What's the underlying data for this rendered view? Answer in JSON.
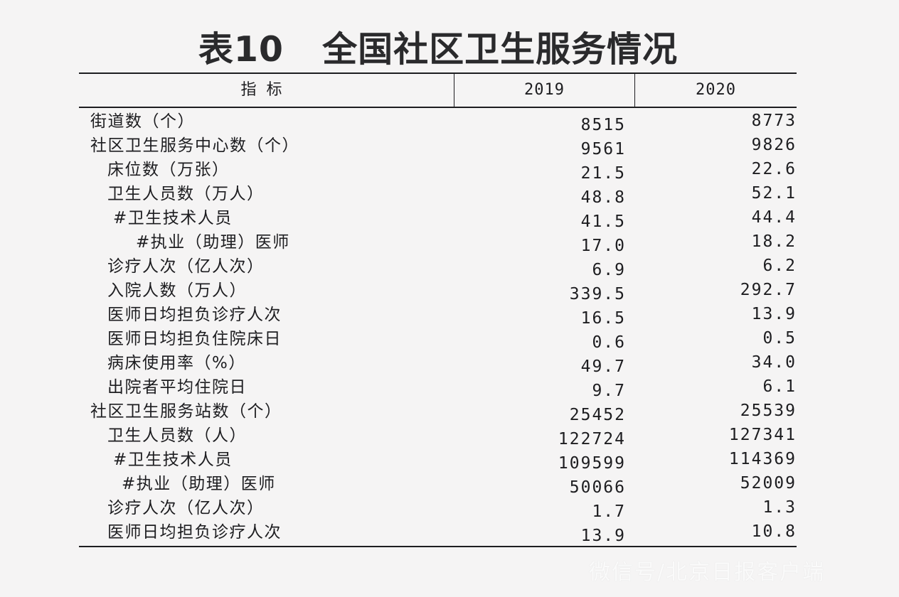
{
  "title": "表10   全国社区卫生服务情况",
  "header": {
    "indicator": "指标",
    "years": [
      "2019",
      "2020"
    ]
  },
  "rows": [
    {
      "label": "街道数（个）",
      "indent": 0,
      "v2019": "8515",
      "v2020": "8773"
    },
    {
      "label": "社区卫生服务中心数（个）",
      "indent": 0,
      "v2019": "9561",
      "v2020": "9826"
    },
    {
      "label": "床位数（万张）",
      "indent": 1,
      "v2019": "21.5",
      "v2020": "22.6"
    },
    {
      "label": "卫生人员数（万人）",
      "indent": 1,
      "v2019": "48.8",
      "v2020": "52.1"
    },
    {
      "label": "#卫生技术人员",
      "indent": 2,
      "v2019": "41.5",
      "v2020": "44.4"
    },
    {
      "label": "#执业（助理）医师",
      "indent": 3,
      "v2019": "17.0",
      "v2020": "18.2"
    },
    {
      "label": "诊疗人次（亿人次）",
      "indent": 1,
      "v2019": "6.9",
      "v2020": "6.2"
    },
    {
      "label": "入院人数（万人）",
      "indent": 1,
      "v2019": "339.5",
      "v2020": "292.7"
    },
    {
      "label": "医师日均担负诊疗人次",
      "indent": 1,
      "v2019": "16.5",
      "v2020": "13.9"
    },
    {
      "label": "医师日均担负住院床日",
      "indent": 1,
      "v2019": "0.6",
      "v2020": "0.5"
    },
    {
      "label": "病床使用率（%）",
      "indent": 1,
      "v2019": "49.7",
      "v2020": "34.0"
    },
    {
      "label": "出院者平均住院日",
      "indent": 1,
      "v2019": "9.7",
      "v2020": "6.1"
    },
    {
      "label": "社区卫生服务站数（个）",
      "indent": 0,
      "v2019": "25452",
      "v2020": "25539"
    },
    {
      "label": "卫生人员数（人）",
      "indent": 1,
      "v2019": "122724",
      "v2020": "127341"
    },
    {
      "label": "#卫生技术人员",
      "indent": 2,
      "v2019": "109599",
      "v2020": "114369"
    },
    {
      "label": "#执业（助理）医师",
      "indent": 4,
      "v2019": "50066",
      "v2020": "52009"
    },
    {
      "label": "诊疗人次（亿人次）",
      "indent": 1,
      "v2019": "1.7",
      "v2020": "1.3"
    },
    {
      "label": "医师日均担负诊疗人次",
      "indent": 1,
      "v2019": "13.9",
      "v2020": "10.8"
    }
  ],
  "watermark": "微信号/北京日报客户端"
}
